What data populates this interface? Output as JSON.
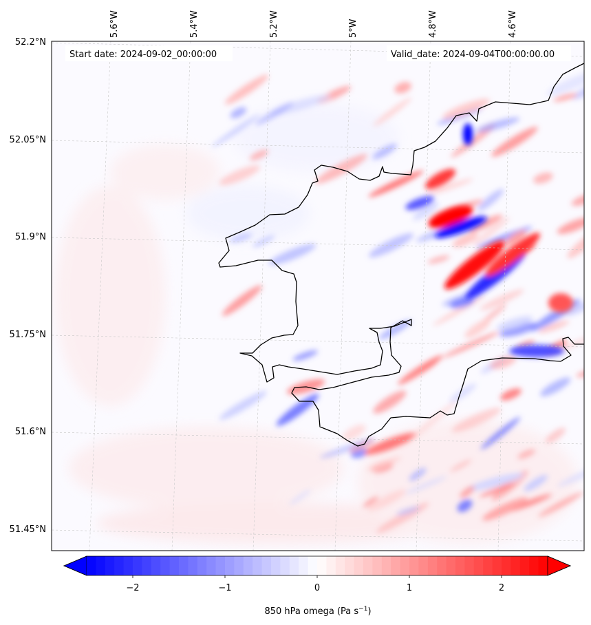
{
  "map": {
    "start_date": "Start date: 2024-09-02_00:00:00",
    "valid_date": "Valid_date: 2024-09-04T00:00:00.00",
    "lon_labels": [
      "5.6°W",
      "5.4°W",
      "5.2°W",
      "5°W",
      "4.8°W",
      "4.6°W"
    ],
    "lat_labels": [
      "52.2°N",
      "52.05°N",
      "51.9°N",
      "51.75°N",
      "51.6°N",
      "51.45°N"
    ],
    "coastline_color": "#000000",
    "gridline_color": "#c8c8c8"
  },
  "colorbar": {
    "label": "850 hPa omega (Pa s",
    "label_sup": "−1",
    "label_end": ")",
    "tick_labels": [
      "−2",
      "−1",
      "0",
      "1",
      "2"
    ],
    "tick_values": [
      -2,
      -1,
      0,
      1,
      2
    ],
    "range": [
      -2.5,
      2.5
    ],
    "extend": "both",
    "cmap_low": "#0000ff",
    "cmap_mid": "#ffffff",
    "cmap_high": "#ff0000"
  }
}
